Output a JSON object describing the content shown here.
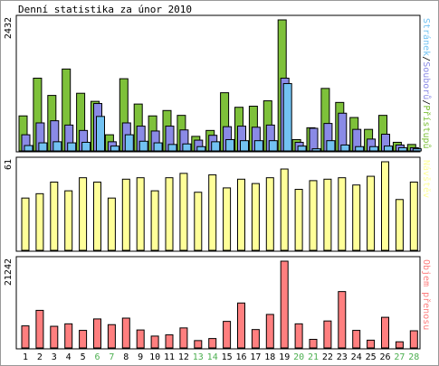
{
  "title": "Denní statistika za únor 2010",
  "colors": {
    "pristupy": "#7ec13a",
    "soubory": "#8a8ae6",
    "stranky": "#72c2f2",
    "navstevy": "#ffff99",
    "objem": "#ff7f7f",
    "weekend_label": "#4caf50",
    "weekday_label": "#000000"
  },
  "chart_data": [
    {
      "type": "bar",
      "panel": "top",
      "ymax_label": "2432",
      "ylim": [
        0,
        2432
      ],
      "legend_parts": [
        {
          "text": "Stránek",
          "color": "#72c2f2"
        },
        {
          "text": "/",
          "color": "#000000"
        },
        {
          "text": "Souborů",
          "color": "#8a8ae6"
        },
        {
          "text": "/",
          "color": "#000000"
        },
        {
          "text": "Přístupů",
          "color": "#7ec13a"
        }
      ],
      "categories": [
        "1",
        "2",
        "3",
        "4",
        "5",
        "6",
        "7",
        "8",
        "9",
        "10",
        "11",
        "12",
        "13",
        "14",
        "15",
        "16",
        "17",
        "18",
        "19",
        "20",
        "21",
        "22",
        "23",
        "24",
        "25",
        "26",
        "27",
        "28"
      ],
      "series": [
        {
          "name": "Přístupů",
          "values": [
            650,
            1350,
            1030,
            1520,
            1070,
            920,
            300,
            1340,
            870,
            650,
            750,
            660,
            270,
            380,
            1080,
            810,
            830,
            930,
            2432,
            210,
            430,
            1160,
            900,
            620,
            400,
            660,
            160,
            120
          ]
        },
        {
          "name": "Souborů",
          "values": [
            300,
            520,
            560,
            480,
            380,
            880,
            170,
            520,
            460,
            370,
            460,
            390,
            200,
            290,
            450,
            460,
            440,
            480,
            1350,
            160,
            420,
            510,
            700,
            400,
            220,
            310,
            110,
            60
          ]
        },
        {
          "name": "Stránek",
          "values": [
            100,
            150,
            170,
            150,
            160,
            640,
            90,
            300,
            180,
            150,
            120,
            130,
            80,
            170,
            210,
            190,
            190,
            190,
            1250,
            90,
            40,
            190,
            110,
            80,
            80,
            90,
            60,
            40
          ]
        }
      ]
    },
    {
      "type": "bar",
      "panel": "middle",
      "ymax_label": "61",
      "ylim": [
        0,
        61
      ],
      "legend_parts": [
        {
          "text": "Návštěv",
          "color": "#ffff99"
        }
      ],
      "categories": [
        "1",
        "2",
        "3",
        "4",
        "5",
        "6",
        "7",
        "8",
        "9",
        "10",
        "11",
        "12",
        "13",
        "14",
        "15",
        "16",
        "17",
        "18",
        "19",
        "20",
        "21",
        "22",
        "23",
        "24",
        "25",
        "26",
        "27",
        "28"
      ],
      "series": [
        {
          "name": "Návštěv",
          "values": [
            36,
            39,
            47,
            41,
            50,
            47,
            36,
            49,
            50,
            41,
            50,
            53,
            40,
            52,
            43,
            49,
            46,
            50,
            56,
            42,
            48,
            49,
            50,
            45,
            51,
            61,
            35,
            47
          ]
        }
      ]
    },
    {
      "type": "bar",
      "panel": "bottom",
      "ymax_label": "21242",
      "ylim": [
        0,
        21242
      ],
      "legend_parts": [
        {
          "text": "Objem přenosu",
          "color": "#ff7f7f"
        }
      ],
      "categories": [
        "1",
        "2",
        "3",
        "4",
        "5",
        "6",
        "7",
        "8",
        "9",
        "10",
        "11",
        "12",
        "13",
        "14",
        "15",
        "16",
        "17",
        "18",
        "19",
        "20",
        "21",
        "22",
        "23",
        "24",
        "25",
        "26",
        "27",
        "28"
      ],
      "series": [
        {
          "name": "Objem přenosu",
          "values": [
            5400,
            9200,
            5300,
            5900,
            4300,
            7100,
            5700,
            7300,
            4400,
            2900,
            3200,
            4900,
            1800,
            2300,
            6500,
            11000,
            4500,
            8200,
            21242,
            5900,
            2100,
            6600,
            13800,
            4300,
            1900,
            7500,
            1500,
            4200
          ]
        }
      ]
    }
  ],
  "x_labels": [
    "1",
    "2",
    "3",
    "4",
    "5",
    "6",
    "7",
    "8",
    "9",
    "10",
    "11",
    "12",
    "13",
    "14",
    "15",
    "16",
    "17",
    "18",
    "19",
    "20",
    "21",
    "22",
    "23",
    "24",
    "25",
    "26",
    "27",
    "28"
  ],
  "weekend_days": [
    "6",
    "7",
    "13",
    "14",
    "20",
    "21",
    "27",
    "28"
  ]
}
